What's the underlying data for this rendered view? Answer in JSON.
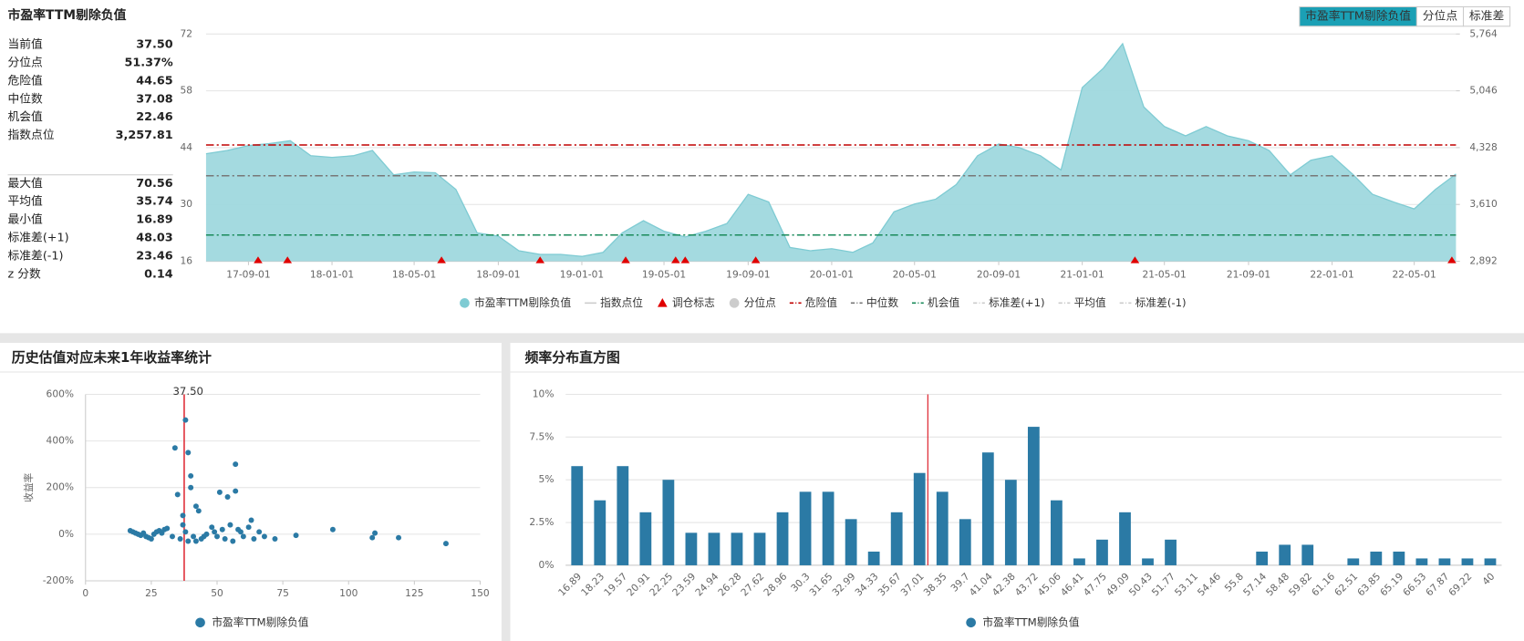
{
  "header": {
    "title": "市盈率TTM剔除负值",
    "tabs": [
      "市盈率TTM剔除负值",
      "分位点",
      "标准差"
    ]
  },
  "stats": [
    {
      "label": "当前值",
      "value": "37.50"
    },
    {
      "label": "分位点",
      "value": "51.37%"
    },
    {
      "label": "危险值",
      "value": "44.65"
    },
    {
      "label": "中位数",
      "value": "37.08"
    },
    {
      "label": "机会值",
      "value": "22.46"
    },
    {
      "label": "指数点位",
      "value": "3,257.81"
    },
    {
      "label": "最大值",
      "value": "70.56"
    },
    {
      "label": "平均值",
      "value": "35.74"
    },
    {
      "label": "最小值",
      "value": "16.89"
    },
    {
      "label": "标准差(+1)",
      "value": "48.03"
    },
    {
      "label": "标准差(-1)",
      "value": "23.46"
    },
    {
      "label": "z 分数",
      "value": "0.14"
    }
  ],
  "chart_data": [
    {
      "type": "area",
      "x": [
        "17-07-01",
        "17-08-01",
        "17-09-01",
        "17-10-01",
        "17-11-01",
        "17-12-01",
        "18-01-01",
        "18-02-01",
        "18-03-01",
        "18-04-01",
        "18-05-01",
        "18-06-01",
        "18-07-01",
        "18-08-01",
        "18-09-01",
        "18-10-01",
        "18-11-01",
        "18-12-01",
        "19-01-01",
        "19-02-01",
        "19-03-01",
        "19-04-01",
        "19-05-01",
        "19-06-01",
        "19-07-01",
        "19-08-01",
        "19-09-01",
        "19-10-01",
        "19-11-01",
        "19-12-01",
        "20-01-01",
        "20-02-01",
        "20-03-01",
        "20-04-01",
        "20-05-01",
        "20-06-01",
        "20-07-01",
        "20-08-01",
        "20-09-01",
        "20-10-01",
        "20-11-01",
        "20-12-01",
        "21-01-01",
        "21-02-01",
        "21-03-01",
        "21-04-01",
        "21-05-01",
        "21-06-01",
        "21-07-01",
        "21-08-01",
        "21-09-01",
        "21-10-01",
        "21-11-01",
        "21-12-01",
        "22-01-01",
        "22-02-01",
        "22-03-01",
        "22-04-01",
        "22-05-01",
        "22-06-01",
        "22-07-01"
      ],
      "xlim": [
        "17-07-01",
        "22-07-01"
      ],
      "xticks": [
        "17-09-01",
        "18-01-01",
        "18-05-01",
        "18-09-01",
        "19-01-01",
        "19-05-01",
        "19-09-01",
        "20-01-01",
        "20-05-01",
        "20-09-01",
        "21-01-01",
        "21-05-01",
        "21-09-01",
        "22-01-01",
        "22-05-01"
      ],
      "ylim": [
        16,
        72
      ],
      "yticks": [
        16,
        30,
        44,
        58,
        72
      ],
      "y2lim": [
        2892,
        5764
      ],
      "y2ticks": [
        {
          "value": 2892,
          "label": "2,892"
        },
        {
          "value": 3610,
          "label": "3,610"
        },
        {
          "value": 4328,
          "label": "4,328"
        },
        {
          "value": 5046,
          "label": "5,046"
        },
        {
          "value": 5764,
          "label": "5,764"
        }
      ],
      "grid": true,
      "series": [
        {
          "name": "市盈率TTM剔除负值",
          "kind": "area",
          "color": "#9fd8de",
          "visible": true,
          "values": [
            42.5,
            43.3,
            44.5,
            45,
            45.7,
            42,
            41.6,
            42,
            43.3,
            37.3,
            38,
            37.8,
            33.7,
            23,
            22.2,
            18.6,
            17.7,
            17.7,
            17.2,
            18.2,
            23,
            26,
            23.4,
            22,
            23.4,
            25.3,
            32.5,
            30.6,
            19.4,
            18.6,
            19.1,
            18.2,
            20.5,
            28.2,
            30.1,
            31.3,
            34.9,
            42,
            44.9,
            44,
            42,
            38.5,
            58.8,
            63.6,
            69.6,
            54,
            49.2,
            46.9,
            49.2,
            46.9,
            45.7,
            43.3,
            37.3,
            40.9,
            42,
            37.3,
            32.5,
            30.6,
            28.9,
            33.7,
            37.5
          ]
        },
        {
          "name": "指数点位",
          "kind": "line",
          "color": "#cccccc",
          "visible": false,
          "axis": "y2"
        },
        {
          "name": "调仓标志",
          "kind": "marker",
          "color": "#e00000",
          "visible": true,
          "x": [
            "17-09-15",
            "17-10-28",
            "18-06-10",
            "18-11-01",
            "19-03-06",
            "19-05-18",
            "19-06-01",
            "19-09-12",
            "21-03-19",
            "22-06-25"
          ]
        },
        {
          "name": "分位点",
          "kind": "point",
          "color": "#cccccc",
          "visible": false
        },
        {
          "name": "危险值",
          "kind": "hline",
          "color": "#c00000",
          "visible": true,
          "value": 44.65
        },
        {
          "name": "中位数",
          "kind": "hline",
          "color": "#777777",
          "visible": true,
          "value": 37.08
        },
        {
          "name": "机会值",
          "kind": "hline",
          "color": "#1a8a5a",
          "visible": true,
          "value": 22.46
        },
        {
          "name": "标准差(+1)",
          "kind": "hline",
          "color": "#cccccc",
          "visible": false
        },
        {
          "name": "平均值",
          "kind": "hline",
          "color": "#cccccc",
          "visible": false
        },
        {
          "name": "标准差(-1)",
          "kind": "hline",
          "color": "#cccccc",
          "visible": false
        }
      ]
    },
    {
      "type": "scatter",
      "title": "历史估值对应未来1年收益率统计",
      "x": [
        17,
        18,
        19,
        20,
        21,
        22,
        23,
        24,
        25,
        26,
        27,
        28,
        29,
        30,
        31,
        33,
        34,
        35,
        36,
        37,
        37,
        38,
        38,
        39,
        39,
        40,
        40,
        41,
        42,
        42,
        43,
        44,
        45,
        46,
        48,
        49,
        50,
        51,
        52,
        53,
        54,
        55,
        56,
        57,
        57,
        58,
        59,
        60,
        62,
        63,
        64,
        66,
        68,
        72,
        80,
        94,
        109,
        110,
        119,
        137
      ],
      "xlim": [
        0,
        150
      ],
      "xticks": [
        0,
        25,
        50,
        75,
        100,
        125,
        150
      ],
      "ylim": [
        -200,
        600
      ],
      "yticks": [
        {
          "value": -200,
          "label": "-200%"
        },
        {
          "value": 0,
          "label": "0%"
        },
        {
          "value": 200,
          "label": "200%"
        },
        {
          "value": 400,
          "label": "400%"
        },
        {
          "value": 600,
          "label": "600%"
        }
      ],
      "ylabel": "收益率",
      "grid": true,
      "current": {
        "value": 37.5,
        "label": "37.50",
        "color": "#e0303a"
      },
      "series": [
        {
          "name": "市盈率TTM剔除负值",
          "color": "#2b7aa5",
          "values": [
            15,
            10,
            5,
            0,
            -5,
            5,
            -10,
            -15,
            -20,
            0,
            10,
            15,
            5,
            20,
            25,
            -10,
            370,
            170,
            -20,
            80,
            40,
            10,
            490,
            350,
            -30,
            250,
            200,
            -10,
            120,
            -30,
            100,
            -20,
            -10,
            0,
            30,
            10,
            -10,
            180,
            20,
            -20,
            160,
            40,
            -30,
            185,
            300,
            20,
            10,
            -10,
            30,
            60,
            -20,
            10,
            -10,
            -20,
            -5,
            20,
            -15,
            5,
            -15,
            -40
          ]
        }
      ]
    },
    {
      "type": "bar",
      "title": "频率分布直方图",
      "categories": [
        "16.89",
        "18.23",
        "19.57",
        "20.91",
        "22.25",
        "23.59",
        "24.94",
        "26.28",
        "27.62",
        "28.96",
        "30.3",
        "31.65",
        "32.99",
        "34.33",
        "35.67",
        "37.01",
        "38.35",
        "39.7",
        "41.04",
        "42.38",
        "43.72",
        "45.06",
        "46.41",
        "47.75",
        "49.09",
        "50.43",
        "51.77",
        "53.11",
        "54.46",
        "55.8",
        "57.14",
        "58.48",
        "59.82",
        "61.16",
        "62.51",
        "63.85",
        "65.19",
        "66.53",
        "67.87",
        "69.22",
        "40"
      ],
      "ylim": [
        0,
        10
      ],
      "yticks": [
        {
          "value": 0,
          "label": "0%"
        },
        {
          "value": 2.5,
          "label": "2.5%"
        },
        {
          "value": 5,
          "label": "5%"
        },
        {
          "value": 7.5,
          "label": "7.5%"
        },
        {
          "value": 10,
          "label": "10%"
        }
      ],
      "grid": true,
      "current": {
        "value": 37.5,
        "color": "#e0303a"
      },
      "series": [
        {
          "name": "市盈率TTM剔除负值",
          "color": "#2b7aa5",
          "values": [
            5.8,
            3.8,
            5.8,
            3.1,
            5.0,
            1.9,
            1.9,
            1.9,
            1.9,
            3.1,
            4.3,
            4.3,
            2.7,
            0.8,
            3.1,
            5.4,
            4.3,
            2.7,
            6.6,
            5.0,
            8.1,
            3.8,
            0.4,
            1.5,
            3.1,
            0.4,
            1.5,
            0,
            0,
            0,
            0.8,
            1.2,
            1.2,
            0,
            0.4,
            0.8,
            0.8,
            0.4,
            0.4,
            0.4,
            0.4
          ]
        }
      ]
    }
  ]
}
